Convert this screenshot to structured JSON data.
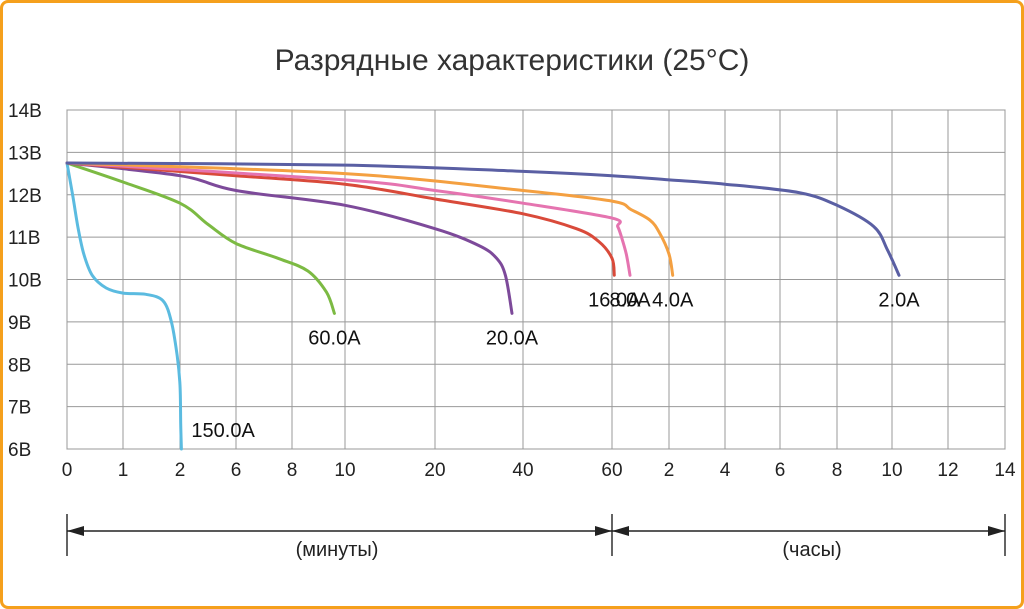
{
  "chart_data": {
    "type": "line",
    "title": "Разрядные характеристики (25°C)",
    "ylim": [
      6,
      14
    ],
    "y_ticks": [
      "6В",
      "7В",
      "8В",
      "9В",
      "10В",
      "11В",
      "12В",
      "13В",
      "14В"
    ],
    "y_tick_values": [
      6,
      7,
      8,
      9,
      10,
      11,
      12,
      13,
      14
    ],
    "x_ticks": [
      "0",
      "1",
      "2",
      "6",
      "8",
      "10",
      "20",
      "40",
      "60",
      "2",
      "4",
      "6",
      "8",
      "10",
      "12",
      "14"
    ],
    "x_units": {
      "minutes": "(минуты)",
      "hours": "(часы)"
    },
    "grid": true,
    "series": [
      {
        "name": "150.0A",
        "color": "#5bbbe0",
        "points": [
          [
            0,
            12.75
          ],
          [
            0.1,
            12.0
          ],
          [
            0.2,
            11.2
          ],
          [
            0.3,
            10.6
          ],
          [
            0.45,
            10.1
          ],
          [
            0.7,
            9.8
          ],
          [
            1.0,
            9.68
          ],
          [
            1.4,
            9.65
          ],
          [
            1.7,
            9.5
          ],
          [
            1.85,
            9.0
          ],
          [
            1.95,
            8.2
          ],
          [
            2.0,
            7.5
          ],
          [
            2.05,
            6.6
          ],
          [
            2.1,
            6.0
          ]
        ]
      },
      {
        "name": "60.0A",
        "color": "#7cba43",
        "points": [
          [
            0,
            12.75
          ],
          [
            1,
            12.3
          ],
          [
            2,
            11.8
          ],
          [
            4,
            11.3
          ],
          [
            6,
            10.85
          ],
          [
            7.5,
            10.5
          ],
          [
            8.6,
            10.2
          ],
          [
            9.3,
            9.7
          ],
          [
            9.6,
            9.2
          ]
        ]
      },
      {
        "name": "20.0A",
        "color": "#7d4a9a",
        "points": [
          [
            0,
            12.75
          ],
          [
            2,
            12.45
          ],
          [
            6,
            12.1
          ],
          [
            10,
            11.75
          ],
          [
            20,
            11.2
          ],
          [
            30,
            10.8
          ],
          [
            34,
            10.5
          ],
          [
            36,
            10.1
          ],
          [
            37.5,
            9.2
          ]
        ]
      },
      {
        "name": "16.0A",
        "color": "#d94a3a",
        "points": [
          [
            0,
            12.75
          ],
          [
            6,
            12.45
          ],
          [
            10,
            12.25
          ],
          [
            20,
            11.9
          ],
          [
            40,
            11.55
          ],
          [
            52,
            11.2
          ],
          [
            57,
            10.9
          ],
          [
            60,
            10.5
          ],
          [
            62.4,
            10.1
          ]
        ]
      },
      {
        "name": "8.0A",
        "color": "#e574b0",
        "points": [
          [
            0,
            12.75
          ],
          [
            10,
            12.35
          ],
          [
            20,
            12.1
          ],
          [
            40,
            11.8
          ],
          [
            60,
            11.45
          ],
          [
            66,
            11.25
          ],
          [
            70,
            11.0
          ],
          [
            75,
            10.6
          ],
          [
            79,
            10.1
          ]
        ]
      },
      {
        "name": "4.0A",
        "color": "#f4a041",
        "points": [
          [
            0,
            12.75
          ],
          [
            10,
            12.5
          ],
          [
            40,
            12.1
          ],
          [
            60,
            11.85
          ],
          [
            80,
            11.65
          ],
          [
            100,
            11.4
          ],
          [
            110,
            11.1
          ],
          [
            120,
            10.6
          ],
          [
            128,
            10.1
          ]
        ]
      },
      {
        "name": "2.0A",
        "color": "#5a5fa3",
        "points": [
          [
            0,
            12.75
          ],
          [
            10,
            12.7
          ],
          [
            40,
            12.55
          ],
          [
            60,
            12.45
          ],
          [
            120,
            12.35
          ],
          [
            240,
            12.25
          ],
          [
            400,
            12.05
          ],
          [
            480,
            11.75
          ],
          [
            560,
            11.25
          ],
          [
            590,
            10.7
          ],
          [
            615,
            10.1
          ]
        ]
      }
    ]
  }
}
